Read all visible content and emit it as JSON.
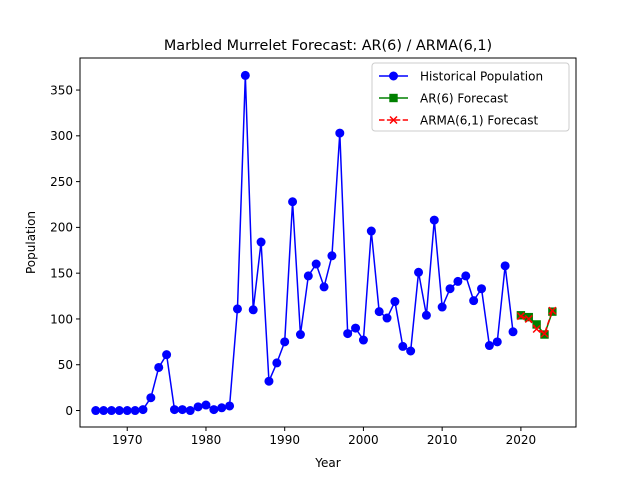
{
  "chart_data": {
    "type": "line",
    "title": "Marbled Murrelet Forecast: AR(6) / ARMA(6,1)",
    "xlabel": "Year",
    "ylabel": "Population",
    "xlim": [
      1964,
      2027
    ],
    "ylim": [
      -18,
      385
    ],
    "x_ticks": [
      1970,
      1980,
      1990,
      2000,
      2010,
      2020
    ],
    "x_tick_labels": [
      "1970",
      "1980",
      "1990",
      "2000",
      "2010",
      "2020"
    ],
    "y_ticks": [
      0,
      50,
      100,
      150,
      200,
      250,
      300,
      350
    ],
    "y_tick_labels": [
      "0",
      "50",
      "100",
      "150",
      "200",
      "250",
      "300",
      "350"
    ],
    "grid": false,
    "legend_position": "top-right",
    "series": [
      {
        "name": "Historical Population",
        "color": "#0000ff",
        "marker": "circle",
        "line_style": "solid",
        "x": [
          1966,
          1967,
          1968,
          1969,
          1970,
          1971,
          1972,
          1973,
          1974,
          1975,
          1976,
          1977,
          1978,
          1979,
          1980,
          1981,
          1982,
          1983,
          1984,
          1985,
          1986,
          1987,
          1988,
          1989,
          1990,
          1991,
          1992,
          1993,
          1994,
          1995,
          1996,
          1997,
          1998,
          1999,
          2000,
          2001,
          2002,
          2003,
          2004,
          2005,
          2006,
          2007,
          2008,
          2009,
          2010,
          2011,
          2012,
          2013,
          2014,
          2015,
          2016,
          2017,
          2018,
          2019
        ],
        "values": [
          0,
          0,
          0,
          0,
          0,
          0,
          1,
          14,
          47,
          61,
          1,
          1,
          0,
          4,
          6,
          1,
          3,
          5,
          111,
          366,
          110,
          184,
          32,
          52,
          75,
          228,
          83,
          147,
          160,
          135,
          169,
          303,
          84,
          90,
          77,
          196,
          108,
          101,
          119,
          70,
          65,
          151,
          104,
          208,
          113,
          133,
          141,
          147,
          120,
          133,
          71,
          75,
          158,
          86
        ]
      },
      {
        "name": "AR(6) Forecast",
        "color": "#008000",
        "marker": "square",
        "line_style": "solid",
        "x": [
          2020,
          2021,
          2022,
          2023,
          2024
        ],
        "values": [
          104,
          102,
          94,
          83,
          108
        ]
      },
      {
        "name": "ARMA(6,1) Forecast",
        "color": "#ff0000",
        "marker": "x",
        "line_style": "dashed",
        "x": [
          2020,
          2021,
          2022,
          2023,
          2024
        ],
        "values": [
          103,
          100,
          89,
          84,
          109
        ]
      }
    ]
  }
}
